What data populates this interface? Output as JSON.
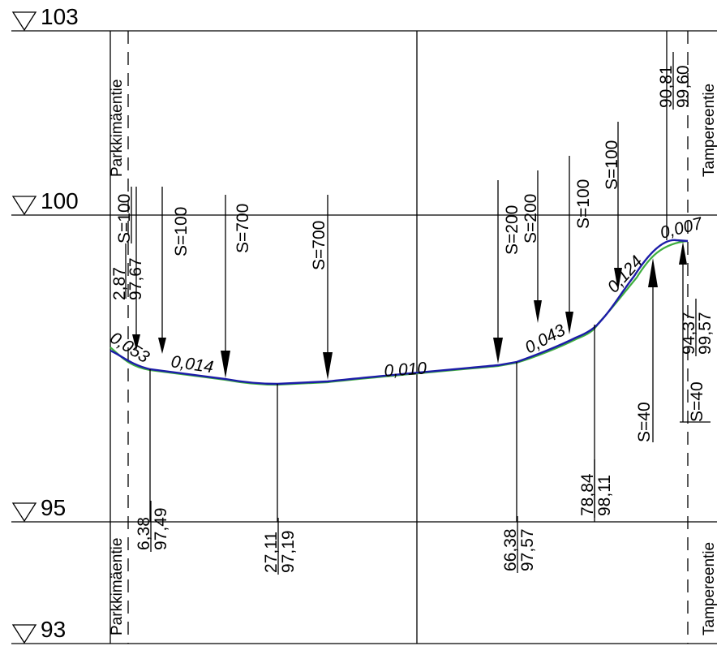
{
  "elevations": {
    "e103": "103",
    "e100": "100",
    "e95": "95",
    "e93": "93"
  },
  "roads": {
    "left": "Parkkimäentie",
    "right": "Tampereentie"
  },
  "points": {
    "p1": {
      "station": "2,87",
      "level": "97,67"
    },
    "p2": {
      "station": "6,38",
      "level": "97,49"
    },
    "p3": {
      "station": "27,11",
      "level": "97,19"
    },
    "p4": {
      "station": "66,38",
      "level": "97,57"
    },
    "p5": {
      "station": "78,84",
      "level": "98,11"
    },
    "p6": {
      "station": "90,81",
      "level": "99,60"
    },
    "p7": {
      "station": "94,37",
      "level": "99,57"
    }
  },
  "slopes": {
    "s1": "0,053",
    "s2": "0,014",
    "s3": "0,010",
    "s4": "0,043",
    "s5": "0,124",
    "s6": "0,007"
  },
  "radii": {
    "r1": "S=100",
    "r2": "S=100",
    "r3": "S=700",
    "r4": "S=700",
    "r5": "S=200",
    "r6": "S=200",
    "r7": "S=100",
    "r8": "S=100",
    "r9": "S=40",
    "r10": "S=40"
  },
  "colors": {
    "profile_line": "#1c1ca8",
    "ground_line": "#3fae3f",
    "grid": "#000000"
  }
}
